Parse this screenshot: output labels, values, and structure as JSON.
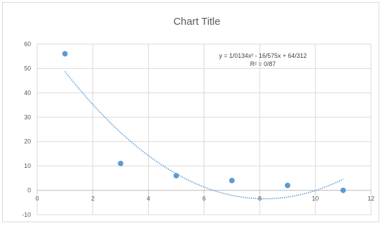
{
  "chart_data": {
    "type": "scatter",
    "title": "Chart Title",
    "xlabel": "",
    "ylabel": "",
    "xlim": [
      0,
      12
    ],
    "ylim": [
      -10,
      60
    ],
    "x_ticks": [
      0,
      2,
      4,
      6,
      8,
      10,
      12
    ],
    "y_ticks": [
      -10,
      0,
      10,
      20,
      30,
      40,
      50,
      60
    ],
    "grid": true,
    "legend": "none",
    "series": [
      {
        "x": [
          1,
          3,
          5,
          7,
          9,
          11
        ],
        "y": [
          56,
          11,
          6,
          4,
          2,
          0
        ],
        "color": "#5b9bd5"
      }
    ],
    "trendline": {
      "type": "polynomial",
      "order": 2,
      "coefficients": [
        1.0134,
        -16.575,
        64.312
      ],
      "x_range": [
        1,
        11
      ],
      "color": "#5b9bd5",
      "style": "dotted"
    },
    "annotations": {
      "equation": "y = 1/0134x² - 16/575x + 64/312",
      "r_squared": "R² = 0/87"
    }
  }
}
